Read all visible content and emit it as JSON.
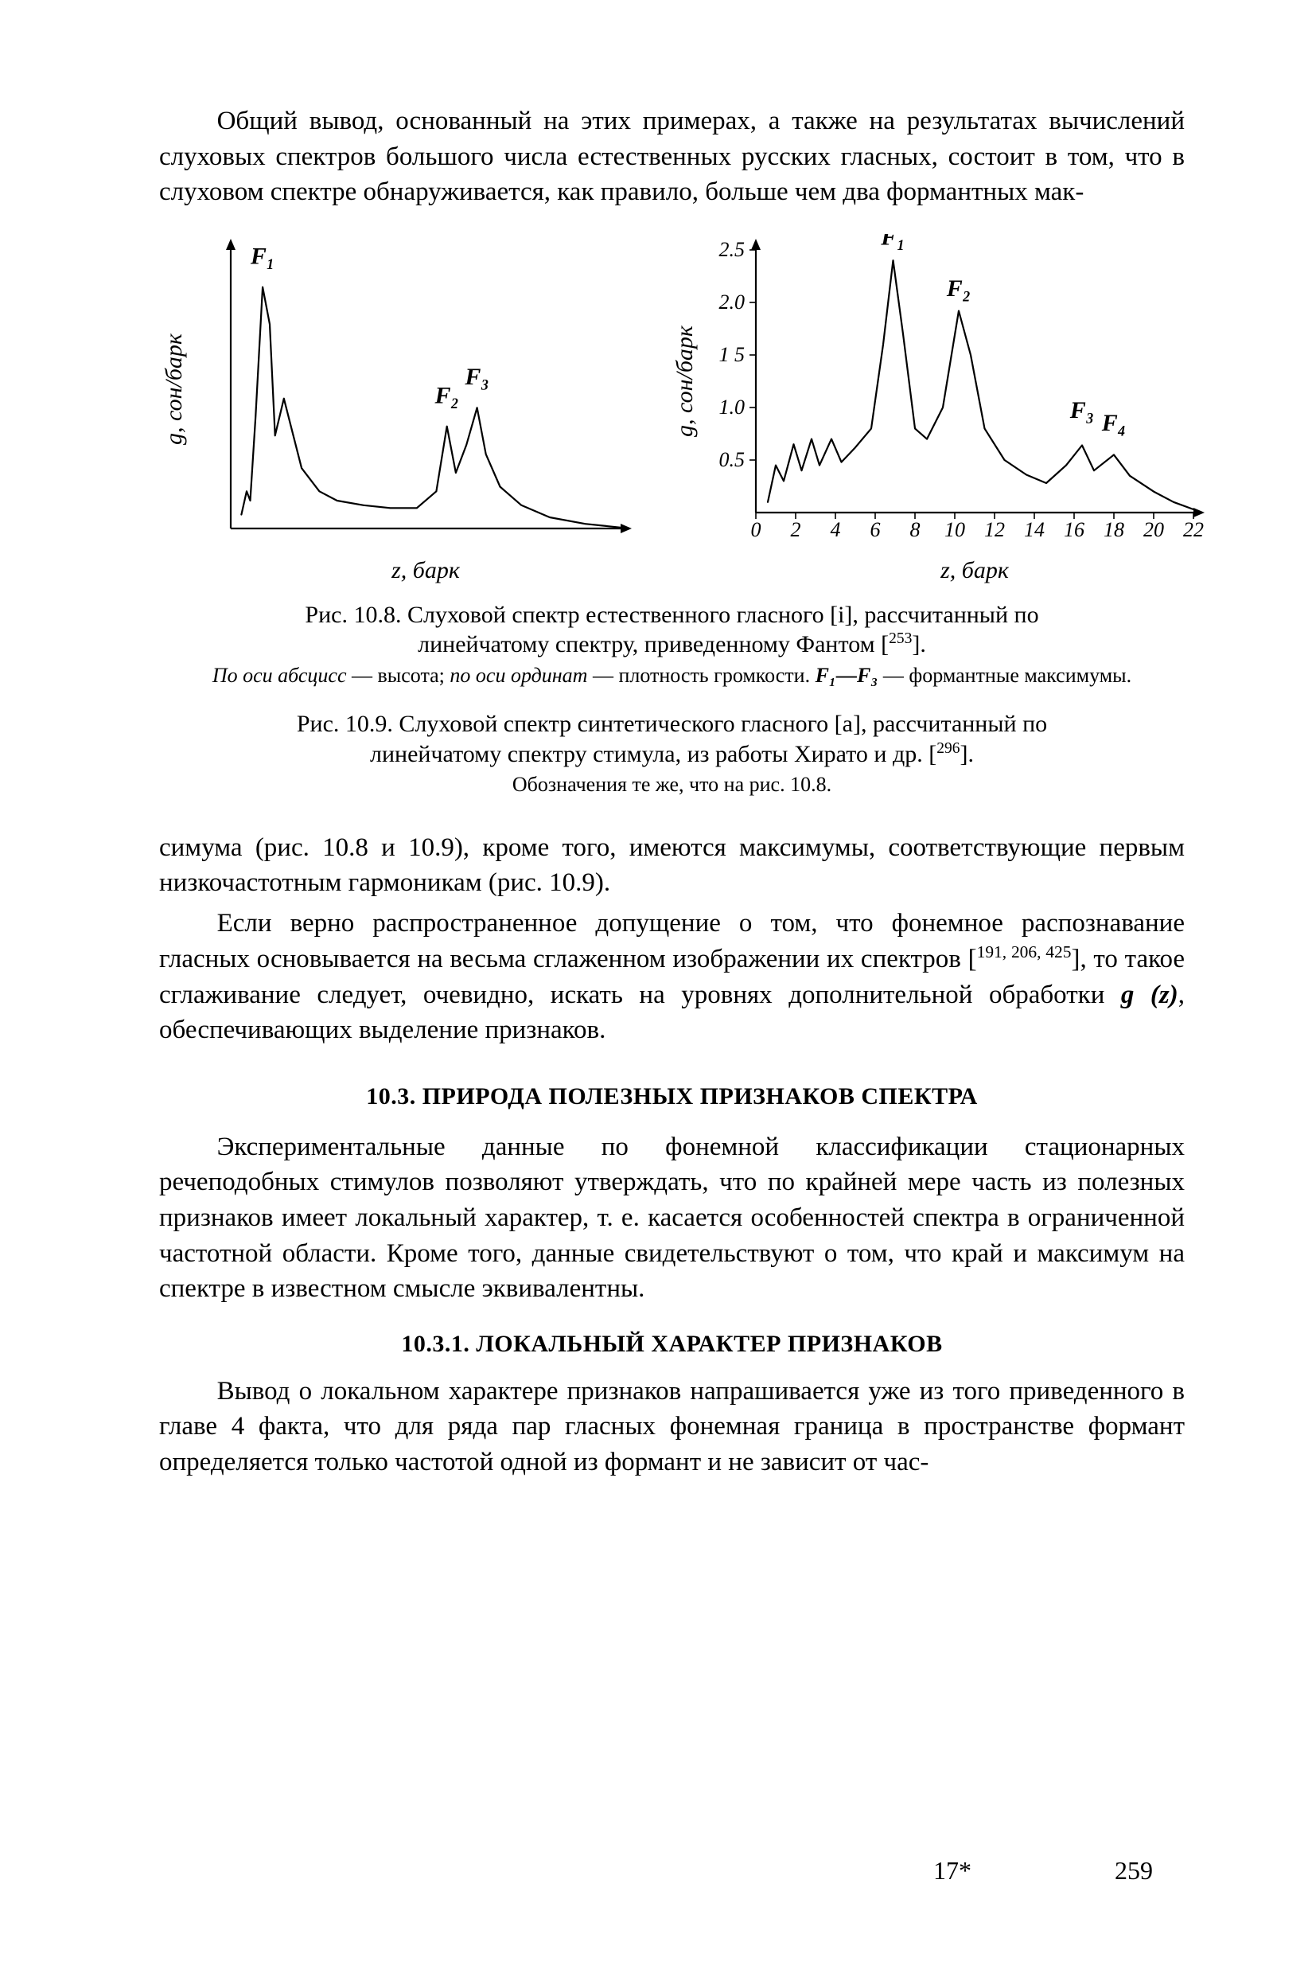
{
  "paragraphs": {
    "p1": "Общий вывод, основанный на этих примерах, а также на результатах вычислений слуховых спектров большого числа естественных русских гласных, состоит в том, что в слуховом спектре обнаруживается, как правило, больше чем два формантных мак-",
    "p2_a": "симума (рис. 10.8 и 10.9), кроме того, имеются максимумы, соответствующие первым низкочастотным гармоникам (рис. 10.9).",
    "p2_b": "Если верно распространенное допущение о том, что фонемное распознавание гласных основывается на весьма сглаженном изображении их спектров [",
    "p2_b_ref": "191, 206, 425",
    "p2_b_tail": "], то такое сглаживание следует, очевидно, искать на уровнях дополнительной обработки ",
    "p2_b_func": "g (z)",
    "p2_b_end": ", обеспечивающих выделение признаков.",
    "p3": "Экспериментальные данные по фонемной классификации стационарных речеподобных стимулов позволяют утверждать, что по крайней мере часть из полезных признаков имеет локальный характер, т. е. касается особенностей спектра в ограниченной частотной области. Кроме того, данные свидетельствуют о том, что край и максимум на спектре в известном смысле эквивалентны.",
    "p4": "Вывод о локальном характере признаков напрашивается уже из того приведенного в главе 4 факта, что для ряда пар гласных фонемная граница в пространстве формант определяется только частотой одной из формант и не зависит от час-"
  },
  "headings": {
    "sec103": "10.3. ПРИРОДА ПОЛЕЗНЫХ ПРИЗНАКОВ СПЕКТРА",
    "sec1031": "10.3.1. ЛОКАЛЬНЫЙ ХАРАКТЕР ПРИЗНАКОВ"
  },
  "captions": {
    "fig108_a": "Рис. 10.8. Слуховой спектр естественного гласного [i], рассчитанный по",
    "fig108_b": "линейчатому спектру, приведенному Фантом [",
    "fig108_ref": "253",
    "fig108_b_end": "].",
    "fig108_sub_a": "По оси абсцисс",
    "fig108_sub_b": " — высота; ",
    "fig108_sub_c": "по оси ординат",
    "fig108_sub_d": " — плотность громкости. ",
    "fig108_sub_e": "F₁—F₃",
    "fig108_sub_f": " — формантные максимумы.",
    "fig109_a": "Рис. 10.9. Слуховой спектр синтетического гласного [a], рассчитанный по",
    "fig109_b": "линейчатому спектру стимула, из работы Хирато и др. [",
    "fig109_ref": "296",
    "fig109_b_end": "].",
    "fig109_sub": "Обозначения те же, что на рис. 10.8."
  },
  "footer": {
    "sig": "17*",
    "page": "259"
  },
  "chart_left": {
    "type": "line",
    "title_labels": {
      "F1": "F₁",
      "F2": "F₂",
      "F3": "F₃"
    },
    "ylabel": "g, сон/барк",
    "xlabel": "z, барк",
    "xlim": [
      0,
      22
    ],
    "ylim": [
      0,
      3.0
    ],
    "stroke": "#000000",
    "stroke_width": 2.2,
    "background": "#ffffff",
    "axis_fontsize": 26,
    "label_fontsize": 30,
    "points": [
      [
        0.6,
        0.15
      ],
      [
        0.9,
        0.4
      ],
      [
        1.1,
        0.3
      ],
      [
        1.4,
        1.2
      ],
      [
        1.8,
        2.6
      ],
      [
        2.2,
        2.2
      ],
      [
        2.5,
        1.0
      ],
      [
        3.0,
        1.4
      ],
      [
        3.4,
        1.1
      ],
      [
        4.0,
        0.65
      ],
      [
        5.0,
        0.4
      ],
      [
        6.0,
        0.3
      ],
      [
        7.5,
        0.25
      ],
      [
        9.0,
        0.22
      ],
      [
        10.5,
        0.22
      ],
      [
        11.6,
        0.4
      ],
      [
        12.2,
        1.1
      ],
      [
        12.7,
        0.6
      ],
      [
        13.3,
        0.9
      ],
      [
        13.9,
        1.3
      ],
      [
        14.4,
        0.8
      ],
      [
        15.2,
        0.45
      ],
      [
        16.4,
        0.25
      ],
      [
        18.0,
        0.12
      ],
      [
        20.0,
        0.05
      ],
      [
        22.0,
        0.01
      ]
    ],
    "formant_markers": [
      {
        "label": "F₁",
        "x": 1.8,
        "y": 2.85
      },
      {
        "label": "F₂",
        "x": 12.2,
        "y": 1.35
      },
      {
        "label": "F₃",
        "x": 13.9,
        "y": 1.55
      }
    ]
  },
  "chart_right": {
    "type": "line",
    "title_labels": {
      "F1": "F₁",
      "F2": "F₂",
      "F3": "F₃",
      "F4": "F₄"
    },
    "ylabel": "g, сон/барк",
    "xlabel": "z, барк",
    "xlim": [
      0,
      22
    ],
    "ylim": [
      0,
      2.5
    ],
    "yticks": [
      0.5,
      1.0,
      1.5,
      2.0,
      2.5
    ],
    "ytick_labels": [
      "0.5",
      "1.0",
      "1 5",
      "2.0",
      "2.5"
    ],
    "xticks": [
      0,
      2,
      4,
      6,
      8,
      10,
      12,
      14,
      16,
      18,
      20,
      22
    ],
    "stroke": "#000000",
    "stroke_width": 2.2,
    "background": "#ffffff",
    "axis_fontsize": 26,
    "label_fontsize": 30,
    "points": [
      [
        0.6,
        0.1
      ],
      [
        1.0,
        0.45
      ],
      [
        1.4,
        0.3
      ],
      [
        1.9,
        0.65
      ],
      [
        2.3,
        0.4
      ],
      [
        2.8,
        0.7
      ],
      [
        3.2,
        0.45
      ],
      [
        3.8,
        0.7
      ],
      [
        4.3,
        0.48
      ],
      [
        5.0,
        0.62
      ],
      [
        5.8,
        0.8
      ],
      [
        6.4,
        1.6
      ],
      [
        6.9,
        2.4
      ],
      [
        7.4,
        1.7
      ],
      [
        8.0,
        0.8
      ],
      [
        8.6,
        0.7
      ],
      [
        9.4,
        1.0
      ],
      [
        10.2,
        1.92
      ],
      [
        10.8,
        1.5
      ],
      [
        11.5,
        0.8
      ],
      [
        12.5,
        0.5
      ],
      [
        13.6,
        0.36
      ],
      [
        14.6,
        0.28
      ],
      [
        15.6,
        0.45
      ],
      [
        16.4,
        0.64
      ],
      [
        17.0,
        0.4
      ],
      [
        18.0,
        0.55
      ],
      [
        18.8,
        0.35
      ],
      [
        20.0,
        0.2
      ],
      [
        21.0,
        0.1
      ],
      [
        22.0,
        0.03
      ]
    ],
    "formant_markers": [
      {
        "label": "F₁",
        "x": 6.9,
        "y": 2.55
      },
      {
        "label": "F₂",
        "x": 10.2,
        "y": 2.06
      },
      {
        "label": "F₃",
        "x": 16.4,
        "y": 0.9
      },
      {
        "label": "F₄",
        "x": 18.0,
        "y": 0.78
      }
    ]
  }
}
